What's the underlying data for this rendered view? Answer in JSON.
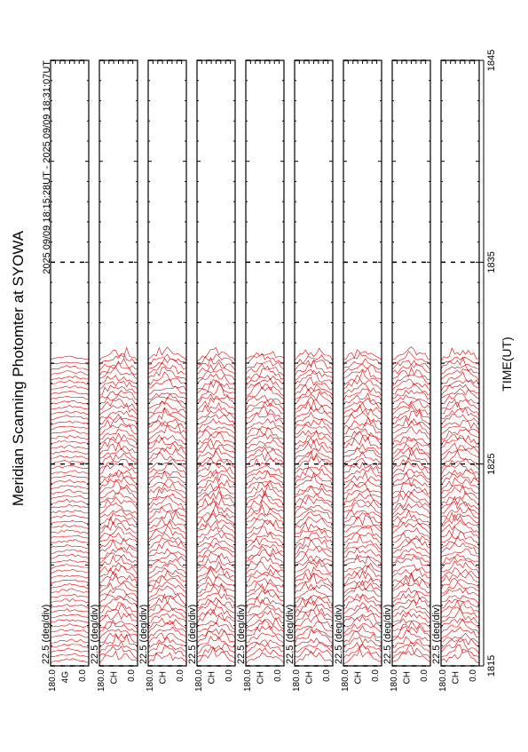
{
  "chart_data": {
    "type": "scan-profiles",
    "title": "Meridian Scanning Photomter at SYOWA",
    "subtitle": "2025 09/09 18:15:28UT - 2025 09/09 18:31:07UT",
    "xlabel": "TIME(UT)",
    "xlim": [
      1815,
      1845
    ],
    "xticks": [
      1815,
      1825,
      1835,
      1845
    ],
    "color": "#e00000",
    "panels": [
      {
        "scale_label": "22.5 (deg/div)",
        "channel": "4G",
        "ticks": [
          {
            "value": 180,
            "label": "180.0"
          },
          {
            "value": 0,
            "label": "0.0"
          }
        ]
      },
      {
        "scale_label": "22.5 (deg/div)",
        "channel": "CH",
        "ticks": [
          {
            "value": 180,
            "label": "180.0"
          },
          {
            "value": 0,
            "label": "0.0"
          }
        ]
      },
      {
        "scale_label": "22.5 (deg/div)",
        "channel": "CH",
        "ticks": [
          {
            "value": 180,
            "label": "180.0"
          },
          {
            "value": 0,
            "label": "0.0"
          }
        ]
      },
      {
        "scale_label": "22.5 (deg/div)",
        "channel": "CH",
        "ticks": [
          {
            "value": 180,
            "label": "180.0"
          },
          {
            "value": 0,
            "label": "0.0"
          }
        ]
      },
      {
        "scale_label": "22.5 (deg/div)",
        "channel": "CH",
        "ticks": [
          {
            "value": 180,
            "label": "180.0"
          },
          {
            "value": 0,
            "label": "0.0"
          }
        ]
      },
      {
        "scale_label": "22.5 (deg/div)",
        "channel": "CH",
        "ticks": [
          {
            "value": 180,
            "label": "180.0"
          },
          {
            "value": 0,
            "label": "0.0"
          }
        ]
      },
      {
        "scale_label": "22.5 (deg/div)",
        "channel": "CH",
        "ticks": [
          {
            "value": 180,
            "label": "180.0"
          },
          {
            "value": 0,
            "label": "0.0"
          }
        ]
      },
      {
        "scale_label": "22.5 (deg/div)",
        "channel": "CH",
        "ticks": [
          {
            "value": 180,
            "label": "180.0"
          },
          {
            "value": 0,
            "label": "0.0"
          }
        ]
      },
      {
        "scale_label": "22.5 (deg/div)",
        "channel": "CH",
        "ticks": [
          {
            "value": 180,
            "label": "180.0"
          },
          {
            "value": 0,
            "label": "0.0"
          }
        ]
      }
    ]
  }
}
